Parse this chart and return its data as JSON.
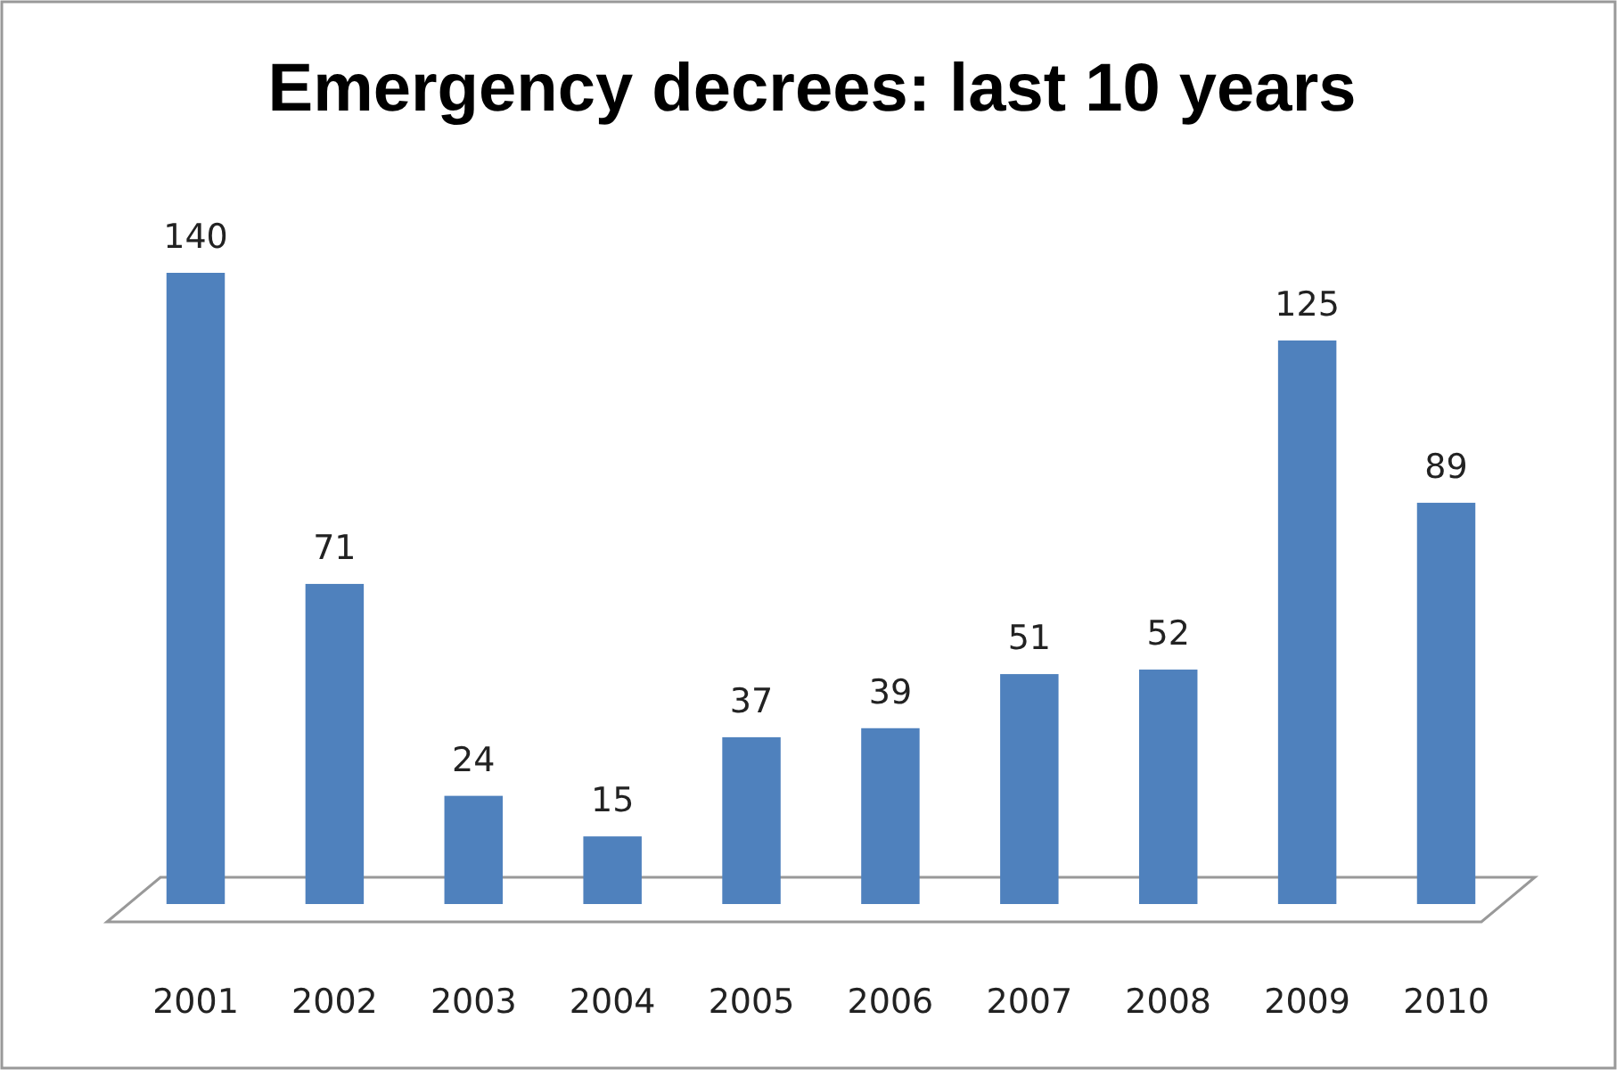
{
  "chart_data": {
    "type": "bar",
    "title": "Emergency decrees: last 10 years",
    "categories": [
      "2001",
      "2002",
      "2003",
      "2004",
      "2005",
      "2006",
      "2007",
      "2008",
      "2009",
      "2010"
    ],
    "values": [
      140,
      71,
      24,
      15,
      37,
      39,
      51,
      52,
      125,
      89
    ],
    "color": "#4f81bd",
    "data_labels": true
  }
}
